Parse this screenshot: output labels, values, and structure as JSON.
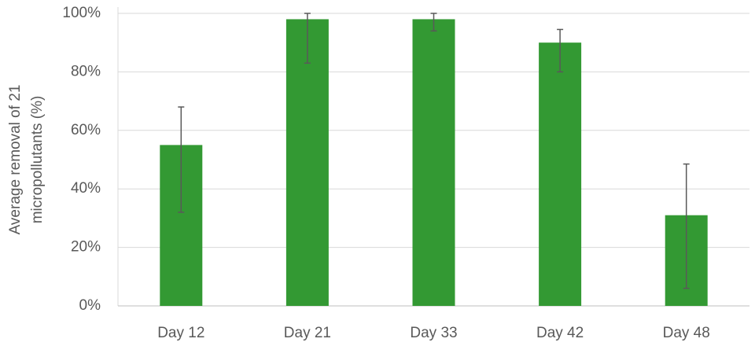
{
  "chart_data": {
    "type": "bar",
    "ylabel": [
      "Average removal of 21",
      "micropollutants (%)"
    ],
    "categories": [
      "Day 12",
      "Day 21",
      "Day 33",
      "Day 42",
      "Day 48"
    ],
    "values": [
      55,
      98,
      98,
      90,
      31
    ],
    "error_minus": [
      23,
      15,
      4,
      10,
      25
    ],
    "error_plus": [
      13,
      2,
      2,
      4.5,
      17.5
    ],
    "color": "#339933",
    "error_color": "#595959",
    "ylim": [
      0,
      100
    ],
    "yticks": [
      {
        "value": 0,
        "label": "0%"
      },
      {
        "value": 20,
        "label": "20%"
      },
      {
        "value": 40,
        "label": "40%"
      },
      {
        "value": 60,
        "label": "60%"
      },
      {
        "value": 80,
        "label": "80%"
      },
      {
        "value": 100,
        "label": "100%"
      }
    ],
    "grid": true
  }
}
